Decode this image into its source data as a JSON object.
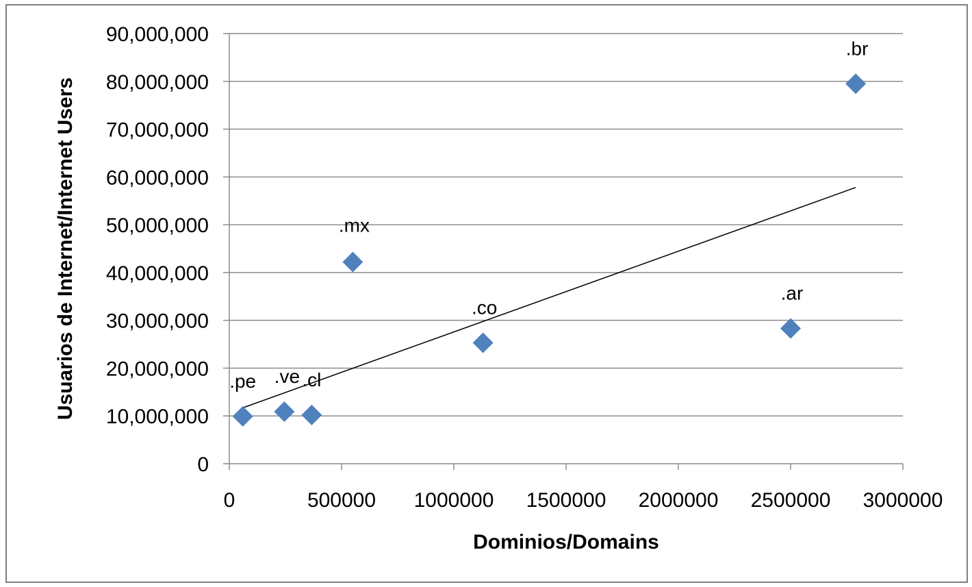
{
  "chart_data": {
    "type": "scatter",
    "title": "",
    "xlabel": "Dominios/Domains",
    "ylabel": "Usuarios de Internet/Internet Users",
    "xlim": [
      0,
      3000000
    ],
    "ylim": [
      0,
      90000000
    ],
    "x_ticks": [
      0,
      500000,
      1000000,
      1500000,
      2000000,
      2500000,
      3000000
    ],
    "x_tick_labels": [
      "0",
      "500000",
      "1000000",
      "1500000",
      "2000000",
      "2500000",
      "3000000"
    ],
    "y_ticks": [
      0,
      10000000,
      20000000,
      30000000,
      40000000,
      50000000,
      60000000,
      70000000,
      80000000,
      90000000
    ],
    "y_tick_labels": [
      "0",
      "10,000,000",
      "20,000,000",
      "30,000,000",
      "40,000,000",
      "50,000,000",
      "60,000,000",
      "70,000,000",
      "80,000,000",
      "90,000,000"
    ],
    "grid": true,
    "marker": "diamond",
    "marker_color": "#4f81bd",
    "trendline_color": "#000000",
    "points": [
      {
        "label": ".pe",
        "x": 60000,
        "y": 9900000
      },
      {
        "label": ".ve",
        "x": 245000,
        "y": 10900000
      },
      {
        "label": ".cl",
        "x": 367000,
        "y": 10200000
      },
      {
        "label": ".mx",
        "x": 550000,
        "y": 42200000
      },
      {
        "label": ".co",
        "x": 1130000,
        "y": 25300000
      },
      {
        "label": ".ar",
        "x": 2500000,
        "y": 28300000
      },
      {
        "label": ".br",
        "x": 2790000,
        "y": 79500000
      }
    ],
    "trendline": {
      "x": [
        60000,
        2790000
      ],
      "y": [
        11700000,
        57800000
      ]
    }
  }
}
